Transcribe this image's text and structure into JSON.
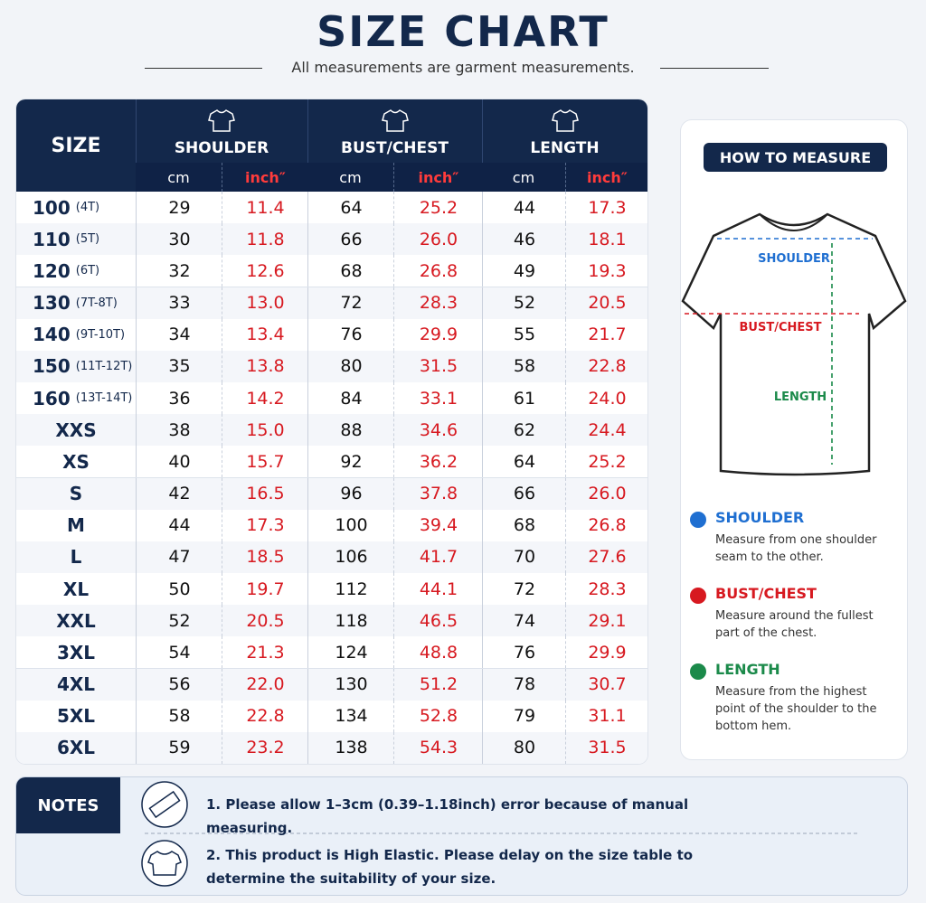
{
  "title": "SIZE CHART",
  "subtitle": "All measurements are garment measurements.",
  "table": {
    "size_header": "SIZE",
    "groups": [
      "SHOULDER",
      "BUST/CHEST",
      "LENGTH"
    ],
    "units": [
      "cm",
      "inch″"
    ],
    "rows": [
      {
        "size": "100",
        "age": "(4T)",
        "cells": [
          "29",
          "11.4",
          "64",
          "25.2",
          "44",
          "17.3"
        ]
      },
      {
        "size": "110",
        "age": "(5T)",
        "cells": [
          "30",
          "11.8",
          "66",
          "26.0",
          "46",
          "18.1"
        ]
      },
      {
        "size": "120",
        "age": "(6T)",
        "cells": [
          "32",
          "12.6",
          "68",
          "26.8",
          "49",
          "19.3"
        ]
      },
      {
        "size": "130",
        "age": "(7T-8T)",
        "cells": [
          "33",
          "13.0",
          "72",
          "28.3",
          "52",
          "20.5"
        ]
      },
      {
        "size": "140",
        "age": "(9T-10T)",
        "cells": [
          "34",
          "13.4",
          "76",
          "29.9",
          "55",
          "21.7"
        ]
      },
      {
        "size": "150",
        "age": "(11T-12T)",
        "cells": [
          "35",
          "13.8",
          "80",
          "31.5",
          "58",
          "22.8"
        ]
      },
      {
        "size": "160",
        "age": "(13T-14T)",
        "cells": [
          "36",
          "14.2",
          "84",
          "33.1",
          "61",
          "24.0"
        ]
      },
      {
        "size": "XXS",
        "cells": [
          "38",
          "15.0",
          "88",
          "34.6",
          "62",
          "24.4"
        ]
      },
      {
        "size": "XS",
        "cells": [
          "40",
          "15.7",
          "92",
          "36.2",
          "64",
          "25.2"
        ]
      },
      {
        "size": "S",
        "cells": [
          "42",
          "16.5",
          "96",
          "37.8",
          "66",
          "26.0"
        ]
      },
      {
        "size": "M",
        "cells": [
          "44",
          "17.3",
          "100",
          "39.4",
          "68",
          "26.8"
        ]
      },
      {
        "size": "L",
        "cells": [
          "47",
          "18.5",
          "106",
          "41.7",
          "70",
          "27.6"
        ]
      },
      {
        "size": "XL",
        "cells": [
          "50",
          "19.7",
          "112",
          "44.1",
          "72",
          "28.3"
        ]
      },
      {
        "size": "XXL",
        "cells": [
          "52",
          "20.5",
          "118",
          "46.5",
          "74",
          "29.1"
        ]
      },
      {
        "size": "3XL",
        "cells": [
          "54",
          "21.3",
          "124",
          "48.8",
          "76",
          "29.9"
        ]
      },
      {
        "size": "4XL",
        "cells": [
          "56",
          "22.0",
          "130",
          "51.2",
          "78",
          "30.7"
        ]
      },
      {
        "size": "5XL",
        "cells": [
          "58",
          "22.8",
          "134",
          "52.8",
          "79",
          "31.1"
        ]
      },
      {
        "size": "6XL",
        "cells": [
          "59",
          "23.2",
          "138",
          "54.3",
          "80",
          "31.5"
        ]
      }
    ]
  },
  "how_to_measure": {
    "title": "HOW TO MEASURE",
    "diagram_labels": [
      "SHOULDER",
      "BUST/CHEST",
      "LENGTH"
    ],
    "items": [
      {
        "name": "SHOULDER",
        "text": "Measure from one shoulder seam to the other."
      },
      {
        "name": "BUST/CHEST",
        "text": "Measure around the fullest part of the chest."
      },
      {
        "name": "LENGTH",
        "text": "Measure from the highest point of the shoulder to the bottom hem."
      }
    ]
  },
  "notes": {
    "label": "NOTES",
    "items": [
      "1. Please allow 1–3cm (0.39–1.18inch) error because of manual measuring.",
      "2. This product is High Elastic. Please delay on the size table to determine the suitability of your size."
    ]
  }
}
